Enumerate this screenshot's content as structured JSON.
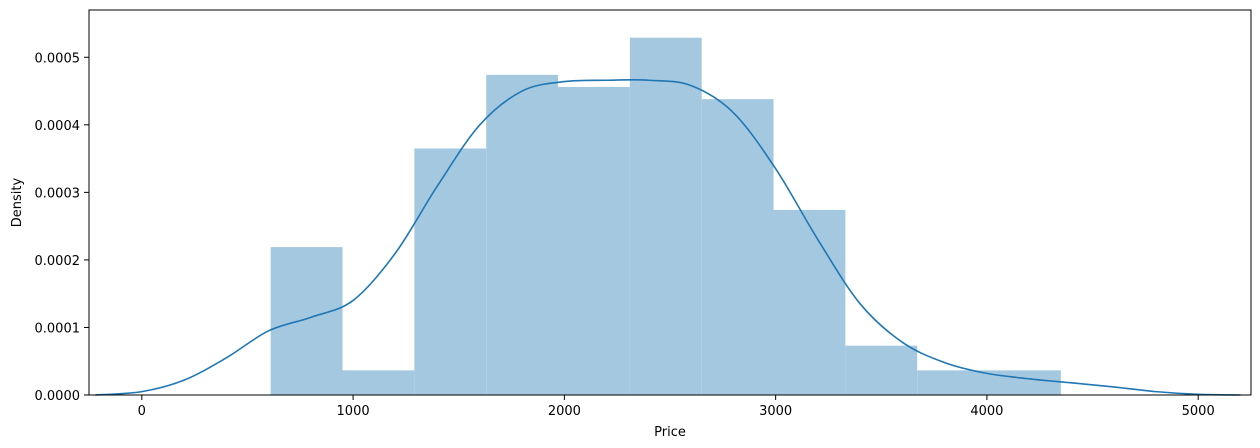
{
  "chart_data": {
    "type": "bar",
    "subtype": "histogram-with-kde",
    "xlabel": "Price",
    "ylabel": "Density",
    "xlim": [
      -250,
      5250
    ],
    "ylim": [
      0,
      0.00057
    ],
    "x_ticks": [
      0,
      1000,
      2000,
      3000,
      4000,
      5000
    ],
    "x_tick_labels": [
      "0",
      "1000",
      "2000",
      "3000",
      "4000",
      "5000"
    ],
    "y_ticks": [
      0,
      0.0001,
      0.0002,
      0.0003,
      0.0004,
      0.0005
    ],
    "y_tick_labels": [
      "0.0000",
      "0.0001",
      "0.0002",
      "0.0003",
      "0.0004",
      "0.0005"
    ],
    "grid": false,
    "legend": "none",
    "bins": [
      {
        "x0": 610,
        "x1": 950,
        "value": 0.000219
      },
      {
        "x0": 950,
        "x1": 1290,
        "value": 3.65e-05
      },
      {
        "x0": 1290,
        "x1": 1630,
        "value": 0.000365
      },
      {
        "x0": 1630,
        "x1": 1970,
        "value": 0.000474
      },
      {
        "x0": 1970,
        "x1": 2310,
        "value": 0.000456
      },
      {
        "x0": 2310,
        "x1": 2650,
        "value": 0.000529
      },
      {
        "x0": 2650,
        "x1": 2990,
        "value": 0.000438
      },
      {
        "x0": 2990,
        "x1": 3330,
        "value": 0.000274
      },
      {
        "x0": 3330,
        "x1": 3670,
        "value": 7.3e-05
      },
      {
        "x0": 3670,
        "x1": 4010,
        "value": 3.65e-05
      },
      {
        "x0": 4010,
        "x1": 4350,
        "value": 3.65e-05
      }
    ],
    "kde": {
      "x": [
        -220,
        0,
        200,
        400,
        600,
        800,
        1000,
        1200,
        1400,
        1600,
        1800,
        2000,
        2200,
        2400,
        2600,
        2800,
        3000,
        3200,
        3400,
        3600,
        3800,
        4000,
        4200,
        4400,
        4600,
        4800,
        5000,
        5200
      ],
      "y": [
        0.0,
        5e-06,
        2.2e-05,
        5.5e-05,
        9.5e-05,
        0.000115,
        0.00014,
        0.00021,
        0.00031,
        0.0004,
        0.00045,
        0.000464,
        0.000466,
        0.000466,
        0.000458,
        0.000418,
        0.000335,
        0.00023,
        0.000135,
        7.8e-05,
        4.8e-05,
        3.2e-05,
        2.4e-05,
        1.8e-05,
        1.2e-05,
        5e-06,
        1e-06,
        0.0
      ]
    },
    "colors": {
      "bar": "#a5c8e1",
      "line": "#1f77b4",
      "axis": "#000000"
    }
  }
}
